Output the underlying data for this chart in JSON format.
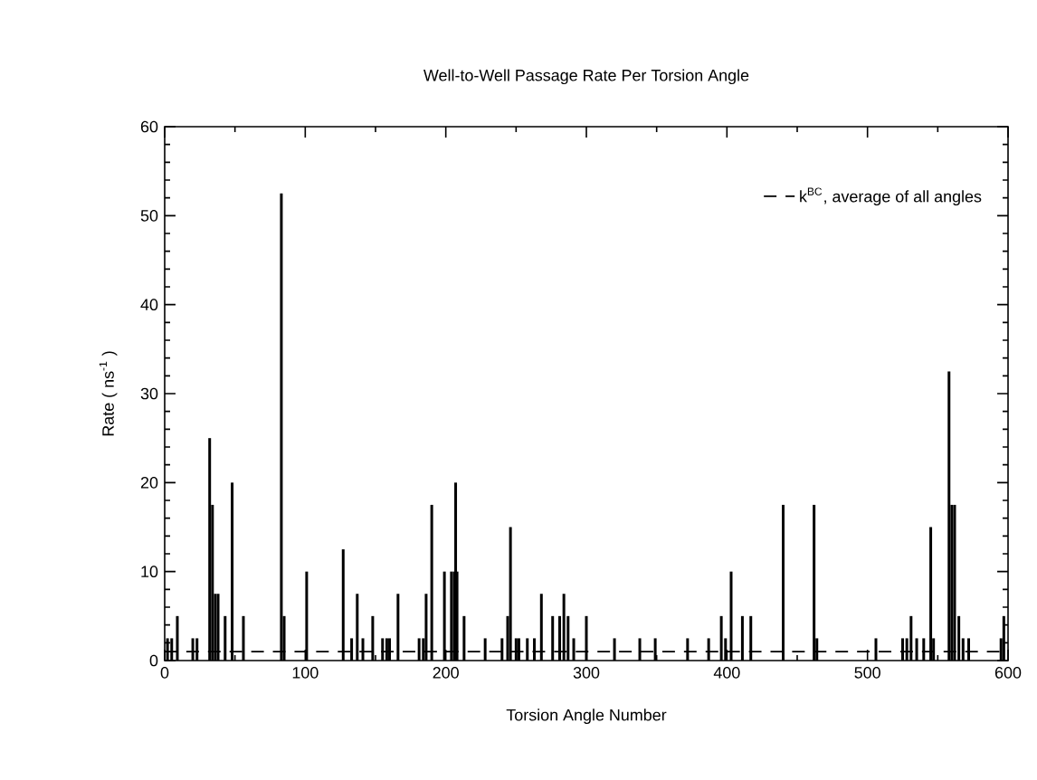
{
  "chart_data": {
    "type": "bar",
    "title": "Well-to-Well Passage Rate Per Torsion Angle",
    "xlabel": "Torsion Angle Number",
    "ylabel": "Rate  ( ns$^{-1}$ )",
    "x": [
      2,
      5,
      9,
      20,
      23,
      32,
      34,
      36,
      38,
      43,
      48,
      56,
      83,
      85,
      101,
      127,
      133,
      137,
      141,
      148,
      155,
      158,
      160,
      166,
      181,
      184,
      186,
      190,
      199,
      204,
      206,
      207,
      208,
      213,
      228,
      240,
      244,
      246,
      250,
      252,
      258,
      263,
      268,
      276,
      281,
      284,
      287,
      291,
      300,
      320,
      338,
      349,
      372,
      387,
      396,
      399,
      403,
      411,
      417,
      440,
      462,
      464,
      506,
      525,
      528,
      531,
      535,
      540,
      545,
      547,
      558,
      560,
      562,
      565,
      568,
      572,
      595,
      597
    ],
    "values": [
      2.5,
      2.5,
      5,
      2.5,
      2.5,
      25,
      17.5,
      7.5,
      7.5,
      5,
      20,
      5,
      52.5,
      5,
      10,
      12.5,
      2.5,
      7.5,
      2.5,
      5,
      2.5,
      2.5,
      2.5,
      7.5,
      2.5,
      2.5,
      7.5,
      17.5,
      10,
      10,
      10,
      20,
      10,
      5,
      2.5,
      2.5,
      5,
      15,
      2.5,
      2.5,
      2.5,
      2.5,
      7.5,
      5,
      5,
      7.5,
      5,
      2.5,
      5,
      2.5,
      2.5,
      2.5,
      2.5,
      2.5,
      5,
      2.5,
      10,
      5,
      5,
      17.5,
      17.5,
      2.5,
      2.5,
      2.5,
      2.5,
      5,
      2.5,
      2.5,
      15,
      2.5,
      32.5,
      17.5,
      17.5,
      5,
      2.5,
      2.5,
      2.5,
      5
    ],
    "color": "#000000",
    "xlim": [
      0,
      600
    ],
    "xticks": [
      0,
      100,
      200,
      300,
      400,
      500,
      600
    ],
    "ylim": [
      0,
      60
    ],
    "yticks": [
      0,
      10,
      20,
      30,
      40,
      50,
      60
    ],
    "ref_lines": [
      {
        "axis": "y",
        "value": 1,
        "label": "k$^{BC}$, average of all angles",
        "line_style": "dashed",
        "color": "#000000"
      }
    ],
    "legend": "top right"
  }
}
